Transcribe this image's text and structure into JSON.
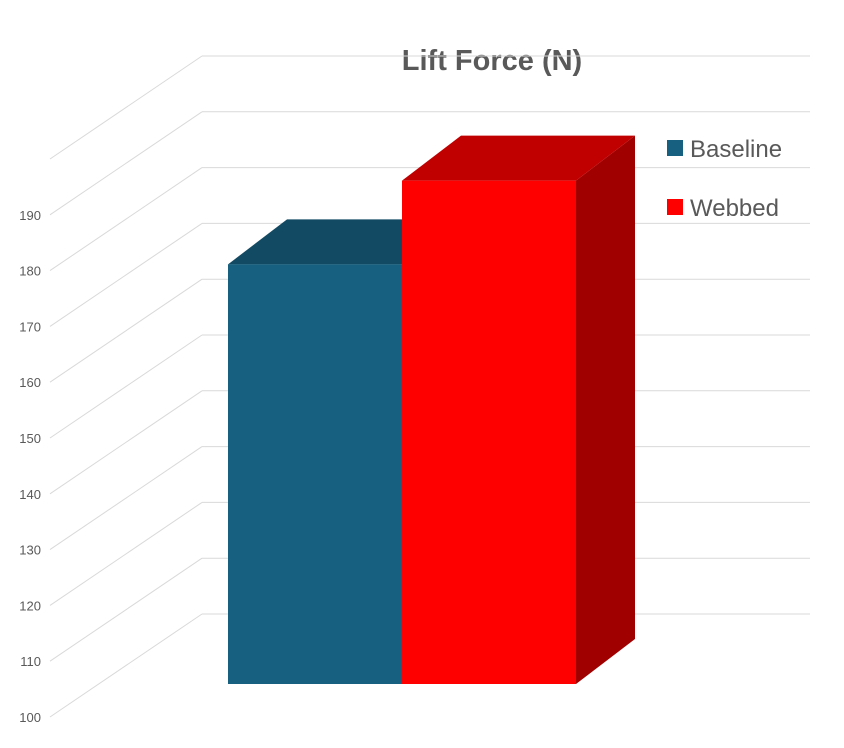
{
  "chart_data": {
    "type": "bar",
    "title": "Lift Force (N)",
    "xlabel": "",
    "ylabel": "",
    "categories": [
      ""
    ],
    "series": [
      {
        "name": "Baseline",
        "values": [
          177
        ],
        "color": "#17607f",
        "top_color": "#124a63"
      },
      {
        "name": "Webbed",
        "values": [
          192
        ],
        "color": "#ff0000",
        "top_color": "#c00000",
        "side_color": "#a00000"
      }
    ],
    "ylim": [
      100,
      200
    ],
    "yticks": [
      100,
      110,
      120,
      130,
      140,
      150,
      160,
      170,
      180,
      190
    ],
    "grid": true,
    "legend": "top-right",
    "style": "3d-column"
  }
}
